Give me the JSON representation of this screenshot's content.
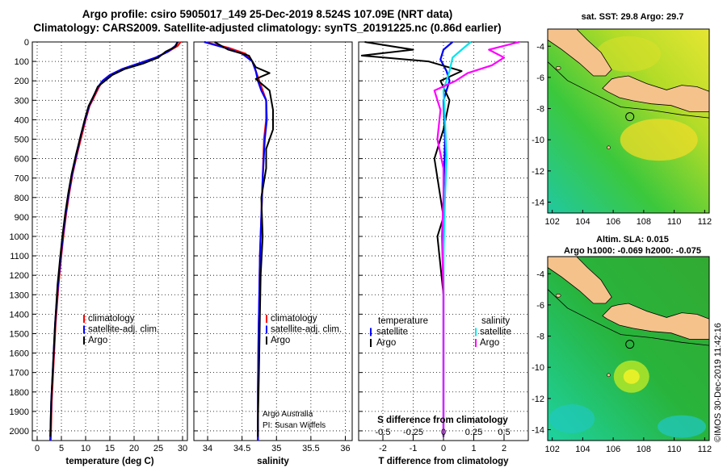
{
  "header": {
    "title_line1": "Argo profile: csiro 5905017_149 25-Dec-2019 8.524S 107.09E (NRT data)",
    "title_line2": "Climatology: CARS2009. Satellite-adjusted climatology: synTS_20191225.nc (0.86d earlier)"
  },
  "colors": {
    "climatology": "#ff0000",
    "satellite": "#0000ff",
    "argo": "#000000",
    "salinity_satellite": "#00e5ee",
    "salinity_argo": "#ff00ff",
    "land": "#f5c28c"
  },
  "chart_data": [
    {
      "id": "temperature",
      "type": "line",
      "xlabel": "temperature (deg C)",
      "xlim": [
        -1,
        31
      ],
      "xticks": [
        0,
        5,
        10,
        15,
        20,
        25,
        30
      ],
      "xtick_labels": [
        "0",
        "5",
        "10",
        "15",
        "20",
        "25",
        "30"
      ],
      "ylim": [
        0,
        2050
      ],
      "yticks": [
        0,
        100,
        200,
        300,
        400,
        500,
        600,
        700,
        800,
        900,
        1000,
        1100,
        1200,
        1300,
        1400,
        1500,
        1600,
        1700,
        1800,
        1900,
        2000
      ],
      "ytick_labels": [
        "0",
        "100",
        "200",
        "300",
        "400",
        "500",
        "600",
        "700",
        "800",
        "900",
        "1000",
        "1100",
        "1200",
        "1300",
        "1400",
        "1500",
        "1600",
        "1700",
        "1800",
        "1900",
        "2000"
      ],
      "legend": [
        "climatology",
        "satellite-adj. clim.",
        "Argo"
      ],
      "series": [
        {
          "name": "climatology",
          "color": "#ff0000",
          "x": [
            29.6,
            29.0,
            27.0,
            24.5,
            21.0,
            17.5,
            15.0,
            13.5,
            12.8,
            12.0,
            10.8,
            10.0,
            9.2,
            8.2,
            7.3,
            6.6,
            6.0,
            5.4,
            4.9,
            4.4,
            3.8,
            3.4,
            3.0,
            2.8
          ],
          "y": [
            0,
            20,
            50,
            80,
            110,
            140,
            170,
            200,
            230,
            270,
            330,
            400,
            480,
            580,
            680,
            780,
            880,
            1000,
            1120,
            1250,
            1450,
            1650,
            1850,
            2050
          ]
        },
        {
          "name": "satellite-adj. clim.",
          "color": "#0000ff",
          "x": [
            29.0,
            28.5,
            27.0,
            24.5,
            21.0,
            17.5,
            15.0,
            13.5,
            12.6,
            11.8,
            10.7,
            9.9,
            9.0,
            8.1,
            7.2,
            6.5,
            5.9,
            5.3,
            4.8,
            4.3,
            3.7,
            3.3,
            2.9,
            2.7
          ],
          "y": [
            0,
            20,
            50,
            80,
            110,
            140,
            170,
            200,
            230,
            270,
            330,
            400,
            480,
            580,
            680,
            780,
            880,
            1000,
            1120,
            1250,
            1450,
            1650,
            1850,
            2050
          ]
        },
        {
          "name": "Argo",
          "color": "#000000",
          "x": [
            29.0,
            28.5,
            26.5,
            25.0,
            22.0,
            18.0,
            15.5,
            14.0,
            12.5,
            11.8,
            10.6,
            9.8,
            9.0,
            8.0,
            7.1,
            6.4,
            5.8,
            5.2,
            4.7,
            4.2,
            3.7,
            3.3,
            2.9,
            2.7
          ],
          "y": [
            0,
            25,
            50,
            80,
            110,
            140,
            170,
            200,
            230,
            270,
            330,
            400,
            480,
            580,
            680,
            780,
            880,
            1000,
            1120,
            1250,
            1450,
            1650,
            1850,
            2030
          ]
        }
      ]
    },
    {
      "id": "salinity",
      "type": "line",
      "xlabel": "salinity",
      "xlim": [
        33.8,
        36.1
      ],
      "xticks": [
        34,
        34.5,
        35,
        35.5,
        36
      ],
      "xtick_labels": [
        "34",
        "34.5",
        "35",
        "35.5",
        "36"
      ],
      "ylim": [
        0,
        2050
      ],
      "legend": [
        "climatology",
        "satellite-adj. clim.",
        "Argo"
      ],
      "annotations": [
        "Argo Australia",
        "PI: Susan Wijffels"
      ],
      "series": [
        {
          "name": "climatology",
          "color": "#ff0000",
          "x": [
            33.95,
            34.3,
            34.55,
            34.65,
            34.7,
            34.75,
            34.8,
            34.85,
            34.85,
            34.82,
            34.8,
            34.78,
            34.76,
            34.75,
            34.74,
            34.73,
            34.73
          ],
          "y": [
            0,
            30,
            60,
            100,
            150,
            200,
            250,
            300,
            400,
            500,
            700,
            900,
            1100,
            1300,
            1500,
            1800,
            2050
          ]
        },
        {
          "name": "satellite-adj. clim.",
          "color": "#0000ff",
          "x": [
            33.95,
            34.25,
            34.5,
            34.65,
            34.7,
            34.73,
            34.78,
            34.85,
            34.86,
            34.83,
            34.8,
            34.78,
            34.76,
            34.75,
            34.74,
            34.73,
            34.73
          ],
          "y": [
            0,
            30,
            60,
            100,
            150,
            200,
            250,
            300,
            400,
            500,
            700,
            900,
            1100,
            1300,
            1500,
            1800,
            2050
          ]
        },
        {
          "name": "Argo",
          "color": "#000000",
          "x": [
            34.1,
            34.3,
            34.6,
            34.65,
            34.7,
            34.9,
            34.7,
            34.9,
            34.95,
            34.95,
            34.85,
            34.85,
            34.78,
            34.8,
            34.77,
            34.76,
            34.75,
            34.74,
            34.73,
            34.73
          ],
          "y": [
            0,
            40,
            70,
            100,
            130,
            160,
            190,
            250,
            350,
            450,
            550,
            650,
            800,
            1000,
            1200,
            1400,
            1600,
            1800,
            1950,
            2030
          ]
        }
      ]
    },
    {
      "id": "difference",
      "type": "line",
      "xlabel": "T difference from climatology",
      "xlim": [
        -2.8,
        2.8
      ],
      "xticks": [
        -2,
        -1,
        0,
        1,
        2
      ],
      "xtick_labels": [
        "-2",
        "-1",
        "0",
        "1",
        "2"
      ],
      "top_axis_label": "S difference from climatology",
      "top_ticks": [
        -0.5,
        -0.25,
        0,
        0.25,
        0.5
      ],
      "top_tick_labels": [
        "-0.5",
        "-0.25",
        "0",
        "0.25",
        "0.5"
      ],
      "top_xlim": [
        -0.7,
        0.7
      ],
      "ylim": [
        0,
        2050
      ],
      "legend_temperature": [
        "temperature",
        "satellite",
        "Argo"
      ],
      "legend_salinity": [
        "salinity",
        "satellite",
        "Argo"
      ],
      "series": [
        {
          "name": "temperature satellite",
          "color": "#0000ff",
          "x": [
            0.3,
            0.0,
            -0.1,
            0.1,
            0.2,
            0.0,
            0.05,
            0.0,
            0.0,
            0.0,
            0.0
          ],
          "y": [
            0,
            40,
            90,
            150,
            200,
            300,
            500,
            800,
            1200,
            1600,
            2030
          ]
        },
        {
          "name": "temperature Argo",
          "color": "#000000",
          "x": [
            -2.6,
            -1.0,
            -2.7,
            -0.5,
            0.6,
            -0.1,
            0.2,
            0.0,
            -0.3,
            -0.1,
            0.0,
            -0.2,
            0.0,
            0.0,
            0.0
          ],
          "y": [
            0,
            40,
            70,
            100,
            150,
            200,
            300,
            450,
            600,
            800,
            900,
            1000,
            1300,
            1700,
            2030
          ]
        },
        {
          "name": "salinity satellite",
          "color": "#00e5ee",
          "x": [
            0.9,
            0.6,
            0.3,
            0.2,
            0.0,
            0.05,
            0.1,
            0.05,
            0.0,
            0.0,
            0.0
          ],
          "y": [
            0,
            40,
            80,
            150,
            250,
            400,
            600,
            800,
            1100,
            1500,
            2030
          ]
        },
        {
          "name": "salinity Argo",
          "color": "#ff00ff",
          "x": [
            2.5,
            1.5,
            2.0,
            1.6,
            0.8,
            0.4,
            -0.3,
            -0.1,
            -0.2,
            0.0,
            0.0,
            -0.05,
            0.0,
            0.0,
            0.0
          ],
          "y": [
            0,
            40,
            80,
            120,
            160,
            200,
            250,
            350,
            500,
            650,
            800,
            1000,
            1300,
            1700,
            2030
          ]
        }
      ]
    },
    {
      "id": "map_sst",
      "type": "heatmap",
      "title": "sat. SST: 29.8 Argo: 29.7",
      "xticks": [
        102,
        104,
        106,
        108,
        110,
        112
      ],
      "xtick_labels": [
        "102",
        "104",
        "106",
        "108",
        "110",
        "112"
      ],
      "yticks": [
        -4,
        -6,
        -8,
        -10,
        -12,
        -14
      ],
      "ytick_labels": [
        "-4",
        "-6",
        "-8",
        "-10",
        "-12",
        "-14"
      ],
      "xlim": [
        101.7,
        112.3
      ],
      "ylim": [
        -14.7,
        -2.9
      ],
      "argo_position": {
        "lon": 107.09,
        "lat": -8.524
      }
    },
    {
      "id": "map_sla",
      "type": "heatmap",
      "title_line1": "Altim. SLA: 0.015",
      "title_line2": "Argo h1000: -0.069 h2000: -0.075",
      "xticks": [
        102,
        104,
        106,
        108,
        110,
        112
      ],
      "xtick_labels": [
        "102",
        "104",
        "106",
        "108",
        "110",
        "112"
      ],
      "yticks": [
        -4,
        -6,
        -8,
        -10,
        -12,
        -14
      ],
      "ytick_labels": [
        "-4",
        "-6",
        "-8",
        "-10",
        "-12",
        "-14"
      ],
      "xlim": [
        101.7,
        112.3
      ],
      "ylim": [
        -14.7,
        -2.9
      ],
      "argo_position": {
        "lon": 107.09,
        "lat": -8.524
      }
    }
  ],
  "footer": {
    "credit": "©IMOS 30-Dec-2019 11:42:16"
  }
}
